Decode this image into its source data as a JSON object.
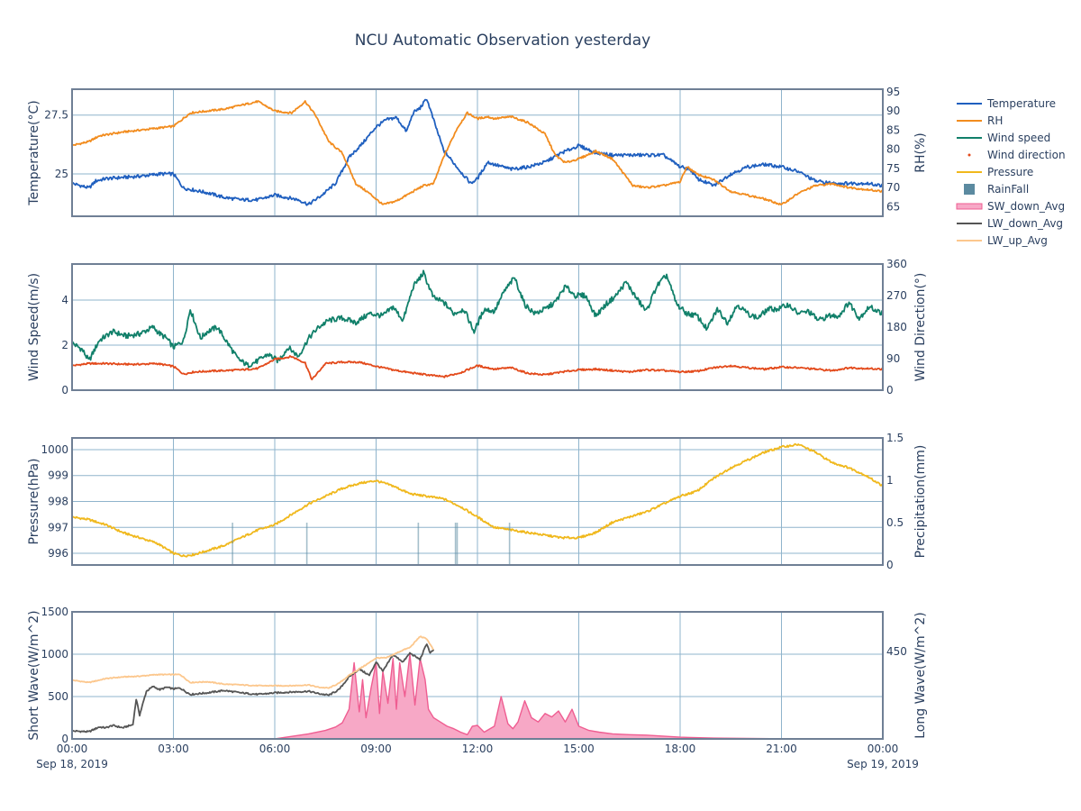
{
  "title": "NCU Automatic Observation yesterday",
  "colors": {
    "temperature": "#1f5fbf",
    "rh": "#f28c1e",
    "wind_speed": "#11806a",
    "wind_direction": "#e34a1b",
    "pressure": "#f0b81c",
    "rainfall": "#5b8aa0",
    "sw_down_fill": "#f7a8c6",
    "sw_down_line": "#ef5d91",
    "lw_down": "#555555",
    "lw_up": "#fcc78d"
  },
  "legend": [
    {
      "name": "Temperature",
      "symbol": "line",
      "color": "#1f5fbf"
    },
    {
      "name": "RH",
      "symbol": "line",
      "color": "#f28c1e"
    },
    {
      "name": "Wind speed",
      "symbol": "line",
      "color": "#11806a"
    },
    {
      "name": "Wind direction",
      "symbol": "dot",
      "color": "#e34a1b"
    },
    {
      "name": "Pressure",
      "symbol": "line",
      "color": "#f0b81c"
    },
    {
      "name": "RainFall",
      "symbol": "square",
      "color": "#5b8aa0"
    },
    {
      "name": "SW_down_Avg",
      "symbol": "fill",
      "color": "#f7a8c6"
    },
    {
      "name": "LW_down_Avg",
      "symbol": "line",
      "color": "#555555"
    },
    {
      "name": "LW_up_Avg",
      "symbol": "line",
      "color": "#fcc78d"
    }
  ],
  "x_axis": {
    "range_hours": [
      0,
      24
    ],
    "ticks": [
      {
        "h": 0,
        "label": "00:00",
        "sublabel": "Sep 18, 2019"
      },
      {
        "h": 3,
        "label": "03:00",
        "sublabel": ""
      },
      {
        "h": 6,
        "label": "06:00",
        "sublabel": ""
      },
      {
        "h": 9,
        "label": "09:00",
        "sublabel": ""
      },
      {
        "h": 12,
        "label": "12:00",
        "sublabel": ""
      },
      {
        "h": 15,
        "label": "15:00",
        "sublabel": ""
      },
      {
        "h": 18,
        "label": "18:00",
        "sublabel": ""
      },
      {
        "h": 21,
        "label": "21:00",
        "sublabel": ""
      },
      {
        "h": 24,
        "label": "00:00",
        "sublabel": "Sep 19, 2019"
      }
    ]
  },
  "chart_data": [
    {
      "type": "line",
      "ylabel": "Temperature(°C)",
      "ylim": [
        23.2,
        28.6
      ],
      "yticks": [
        25,
        27.5
      ],
      "y2label": "RH(%)",
      "y2lim": [
        62.5,
        95.7
      ],
      "y2ticks": [
        65,
        70,
        75,
        80,
        85,
        90,
        95
      ],
      "series": [
        {
          "name": "Temperature",
          "axis": "y1",
          "color": "#1f5fbf",
          "x": [
            0,
            0.5,
            0.7,
            1.0,
            2.0,
            2.6,
            3.0,
            3.3,
            4.0,
            4.5,
            5.0,
            5.5,
            6.0,
            6.7,
            7.0,
            7.4,
            7.8,
            8.2,
            8.6,
            9.0,
            9.3,
            9.6,
            9.9,
            10.1,
            10.3,
            10.5,
            10.7,
            11.0,
            11.5,
            11.8,
            12.0,
            12.3,
            12.5,
            13.0,
            13.5,
            14.0,
            14.5,
            15.0,
            15.5,
            16.0,
            16.5,
            17.0,
            17.5,
            18.0,
            18.3,
            18.5,
            19.0,
            19.5,
            20.0,
            20.5,
            21.0,
            21.5,
            22.0,
            22.5,
            23.0,
            23.5,
            24.0
          ],
          "y": [
            24.6,
            24.4,
            24.7,
            24.8,
            24.9,
            25.0,
            25.0,
            24.4,
            24.2,
            24.0,
            23.9,
            23.9,
            24.1,
            23.9,
            23.7,
            24.1,
            24.6,
            25.7,
            26.3,
            27.0,
            27.3,
            27.4,
            26.8,
            27.6,
            27.8,
            28.2,
            27.3,
            26.0,
            25.1,
            24.6,
            24.8,
            25.5,
            25.4,
            25.2,
            25.3,
            25.5,
            25.9,
            26.2,
            25.9,
            25.8,
            25.8,
            25.8,
            25.8,
            25.3,
            25.2,
            24.8,
            24.5,
            25.0,
            25.3,
            25.4,
            25.3,
            25.1,
            24.7,
            24.6,
            24.6,
            24.6,
            24.5
          ]
        },
        {
          "name": "RH",
          "axis": "y2",
          "color": "#f28c1e",
          "x": [
            0,
            0.5,
            0.8,
            1.5,
            2.5,
            3.0,
            3.5,
            4.5,
            5.0,
            5.5,
            6.0,
            6.5,
            6.9,
            7.2,
            7.6,
            8.0,
            8.4,
            8.8,
            9.2,
            9.6,
            10.0,
            10.4,
            10.7,
            11.0,
            11.4,
            11.7,
            12.0,
            12.3,
            12.5,
            13.0,
            13.5,
            14.0,
            14.3,
            14.6,
            15.0,
            15.5,
            16.0,
            16.6,
            17.0,
            17.5,
            18.0,
            18.2,
            18.5,
            19.0,
            19.5,
            20.0,
            20.5,
            21.0,
            21.5,
            22.0,
            22.5,
            23.0,
            23.5,
            24.0
          ],
          "y": [
            81.0,
            82.0,
            83.5,
            84.5,
            85.5,
            86.0,
            89.5,
            90.5,
            91.5,
            92.5,
            90.0,
            89.5,
            92.5,
            89.0,
            82.0,
            79.0,
            71.0,
            68.5,
            65.5,
            66.5,
            68.5,
            70.5,
            71.0,
            78.0,
            85.5,
            89.5,
            88.0,
            88.5,
            88.0,
            88.5,
            87.0,
            84.0,
            78.5,
            76.5,
            77.5,
            79.5,
            77.5,
            70.5,
            70.0,
            70.5,
            71.5,
            75.5,
            73.5,
            72.0,
            69.0,
            68.0,
            67.0,
            65.5,
            68.5,
            70.5,
            71.0,
            70.0,
            69.5,
            69.0
          ]
        }
      ]
    },
    {
      "type": "line",
      "ylabel": "Wind Speed(m/s)",
      "ylim": [
        0,
        5.6
      ],
      "yticks": [
        0,
        2,
        4
      ],
      "y2label": "Wind Direction(°)",
      "y2lim": [
        0,
        360
      ],
      "y2ticks": [
        0,
        90,
        180,
        270,
        360
      ],
      "series": [
        {
          "name": "Wind speed",
          "axis": "y1",
          "color": "#11806a",
          "x": [
            0,
            0.3,
            0.5,
            0.8,
            1.2,
            1.6,
            2.0,
            2.4,
            2.6,
            2.8,
            3.0,
            3.3,
            3.5,
            3.8,
            4.0,
            4.3,
            4.6,
            4.9,
            5.2,
            5.5,
            5.8,
            6.1,
            6.4,
            6.7,
            7.0,
            7.3,
            7.6,
            8.0,
            8.4,
            8.8,
            9.2,
            9.5,
            9.8,
            10.1,
            10.4,
            10.7,
            11.0,
            11.3,
            11.6,
            11.9,
            12.2,
            12.5,
            12.8,
            13.1,
            13.4,
            13.7,
            14.0,
            14.3,
            14.6,
            14.9,
            15.2,
            15.5,
            15.8,
            16.1,
            16.4,
            16.7,
            17.0,
            17.3,
            17.6,
            17.9,
            18.2,
            18.5,
            18.8,
            19.1,
            19.4,
            19.7,
            20.0,
            20.3,
            20.6,
            20.9,
            21.2,
            21.5,
            21.8,
            22.1,
            22.4,
            22.7,
            23.0,
            23.3,
            23.6,
            24.0
          ],
          "y": [
            2.1,
            1.8,
            1.3,
            2.2,
            2.6,
            2.4,
            2.5,
            2.8,
            2.5,
            2.3,
            1.9,
            2.2,
            3.6,
            2.3,
            2.6,
            2.8,
            2.1,
            1.4,
            1.1,
            1.3,
            1.6,
            1.3,
            1.9,
            1.5,
            2.3,
            2.8,
            3.1,
            3.2,
            3.0,
            3.4,
            3.3,
            3.7,
            3.1,
            4.6,
            5.2,
            4.1,
            3.9,
            3.4,
            3.6,
            2.6,
            3.6,
            3.5,
            4.4,
            5.0,
            3.8,
            3.4,
            3.6,
            3.9,
            4.6,
            4.2,
            4.2,
            3.3,
            3.8,
            4.2,
            4.8,
            4.1,
            3.5,
            4.6,
            5.1,
            3.8,
            3.4,
            3.3,
            2.7,
            3.6,
            3.0,
            3.8,
            3.4,
            3.2,
            3.6,
            3.6,
            3.8,
            3.4,
            3.5,
            3.1,
            3.3,
            3.3,
            3.9,
            3.2,
            3.7,
            3.4
          ]
        },
        {
          "name": "Wind direction",
          "axis": "y2",
          "color": "#e34a1b",
          "x": [
            0,
            0.5,
            1.0,
            1.5,
            2.0,
            2.5,
            3.0,
            3.3,
            3.6,
            4.0,
            4.5,
            5.0,
            5.5,
            6.0,
            6.5,
            6.9,
            7.1,
            7.5,
            8.0,
            8.5,
            9.0,
            9.5,
            10.0,
            10.5,
            11.0,
            11.5,
            12.0,
            12.5,
            13.0,
            13.5,
            14.0,
            14.5,
            15.0,
            15.5,
            16.0,
            16.5,
            17.0,
            17.5,
            18.0,
            18.5,
            19.0,
            19.5,
            20.0,
            20.5,
            21.0,
            21.5,
            22.0,
            22.5,
            23.0,
            23.5,
            24.0
          ],
          "y": [
            70,
            76,
            76,
            74,
            74,
            76,
            68,
            46,
            52,
            54,
            56,
            58,
            62,
            88,
            96,
            78,
            30,
            76,
            80,
            80,
            68,
            58,
            50,
            44,
            38,
            50,
            70,
            60,
            64,
            48,
            44,
            52,
            58,
            60,
            56,
            52,
            58,
            56,
            52,
            54,
            64,
            70,
            64,
            60,
            66,
            64,
            60,
            56,
            64,
            62,
            60
          ]
        }
      ]
    },
    {
      "type": "line",
      "ylabel": "Pressure(hPa)",
      "ylim": [
        995.55,
        1000.45
      ],
      "yticks": [
        996,
        997,
        998,
        999,
        1000
      ],
      "y2label": "Precipitation(mm)",
      "y2lim": [
        0,
        1.5
      ],
      "y2ticks": [
        0,
        0.5,
        1,
        1.5
      ],
      "series": [
        {
          "name": "Pressure",
          "axis": "y1",
          "color": "#f0b81c",
          "x": [
            0,
            0.5,
            1.0,
            1.5,
            2.0,
            2.5,
            3.0,
            3.3,
            3.6,
            4.0,
            4.5,
            5.0,
            5.5,
            6.0,
            6.5,
            7.0,
            7.5,
            8.0,
            8.5,
            9.0,
            9.5,
            10.0,
            10.5,
            11.0,
            11.5,
            12.0,
            12.5,
            13.0,
            13.5,
            14.0,
            14.5,
            15.0,
            15.5,
            16.0,
            16.5,
            17.0,
            17.5,
            18.0,
            18.5,
            19.0,
            19.5,
            20.0,
            20.5,
            21.0,
            21.5,
            22.0,
            22.5,
            23.0,
            23.5,
            24.0
          ],
          "y": [
            997.4,
            997.3,
            997.1,
            996.8,
            996.6,
            996.4,
            996.0,
            995.9,
            995.95,
            996.1,
            996.3,
            996.6,
            996.9,
            997.1,
            997.5,
            997.9,
            998.2,
            998.5,
            998.7,
            998.8,
            998.6,
            998.3,
            998.2,
            998.1,
            997.8,
            997.4,
            997.0,
            996.9,
            996.8,
            996.7,
            996.6,
            996.6,
            996.8,
            997.2,
            997.4,
            997.6,
            997.9,
            998.2,
            998.4,
            998.9,
            999.3,
            999.6,
            999.9,
            1000.1,
            1000.2,
            999.9,
            999.5,
            999.3,
            999.0,
            998.6
          ]
        },
        {
          "name": "RainFall",
          "axis": "y2",
          "color": "#5b8aa0",
          "type": "bar",
          "x": [
            4.75,
            6.95,
            10.25,
            11.35,
            11.4,
            12.95
          ],
          "y": [
            0.5,
            0.5,
            0.5,
            0.5,
            0.5,
            0.5
          ]
        }
      ]
    },
    {
      "type": "area",
      "ylabel": "Short Wave(W/m^2)",
      "ylim": [
        0,
        1500
      ],
      "yticks": [
        0,
        500,
        1000,
        1500
      ],
      "y2label": "Long Wave(W/m^2)",
      "y2lim": [
        340,
        500
      ],
      "y2ticks": [
        450
      ],
      "series": [
        {
          "name": "SW_down_Avg",
          "axis": "y1",
          "color": "#ef5d91",
          "fill": "#f7a8c6",
          "x": [
            0,
            6.0,
            6.5,
            7.0,
            7.5,
            7.8,
            8.0,
            8.2,
            8.35,
            8.5,
            8.6,
            8.7,
            8.85,
            9.0,
            9.1,
            9.2,
            9.35,
            9.5,
            9.6,
            9.7,
            9.85,
            10.0,
            10.15,
            10.3,
            10.45,
            10.55,
            10.7,
            10.9,
            11.1,
            11.3,
            11.5,
            11.7,
            11.85,
            12.0,
            12.2,
            12.5,
            12.7,
            12.9,
            13.05,
            13.2,
            13.4,
            13.6,
            13.8,
            14.0,
            14.2,
            14.4,
            14.6,
            14.8,
            15.0,
            15.3,
            15.6,
            16.0,
            16.5,
            17.0,
            18.0,
            19.0,
            20.0,
            21.0,
            22.0,
            23.0,
            24.0
          ],
          "y": [
            0,
            0,
            30,
            60,
            100,
            140,
            190,
            350,
            900,
            320,
            700,
            250,
            600,
            900,
            300,
            800,
            420,
            950,
            350,
            900,
            500,
            1000,
            400,
            950,
            700,
            350,
            250,
            200,
            150,
            120,
            80,
            50,
            150,
            160,
            80,
            150,
            500,
            180,
            120,
            200,
            450,
            250,
            200,
            300,
            260,
            330,
            200,
            350,
            150,
            100,
            80,
            60,
            50,
            45,
            20,
            10,
            5,
            2,
            0,
            0,
            0
          ]
        },
        {
          "name": "LW_down_Avg",
          "axis": "y2",
          "color": "#555555",
          "x": [
            0,
            0.5,
            0.8,
            1.0,
            1.2,
            1.5,
            1.8,
            1.9,
            2.0,
            2.2,
            2.4,
            2.6,
            2.8,
            3.0,
            3.2,
            3.5,
            4.0,
            4.5,
            5.0,
            5.5,
            6.0,
            6.5,
            7.0,
            7.3,
            7.6,
            7.9,
            8.2,
            8.5,
            8.8,
            9.0,
            9.2,
            9.5,
            9.8,
            10.0,
            10.3,
            10.5,
            10.6,
            10.7
          ],
          "y": [
            350,
            349,
            355,
            354,
            357,
            354,
            358,
            390,
            370,
            400,
            406,
            402,
            405,
            403,
            404,
            396,
            398,
            401,
            398,
            396,
            398,
            399,
            400,
            397,
            395,
            402,
            418,
            428,
            420,
            437,
            425,
            446,
            437,
            448,
            440,
            460,
            448,
            452
          ]
        },
        {
          "name": "LW_up_Avg",
          "axis": "y2",
          "color": "#fcc78d",
          "x": [
            0,
            0.5,
            1.0,
            1.5,
            2.0,
            2.5,
            3.0,
            3.2,
            3.5,
            4.0,
            4.5,
            5.0,
            5.5,
            6.0,
            6.5,
            7.0,
            7.3,
            7.6,
            7.9,
            8.2,
            8.5,
            8.8,
            9.0,
            9.3,
            9.6,
            9.8,
            10.0,
            10.3,
            10.5,
            10.7
          ],
          "y": [
            414,
            411,
            416,
            418,
            419,
            421,
            421,
            421,
            411,
            412,
            409,
            408,
            407,
            407,
            407,
            408,
            405,
            404,
            410,
            420,
            428,
            436,
            442,
            442,
            448,
            452,
            455,
            469,
            466,
            452
          ]
        }
      ]
    }
  ]
}
